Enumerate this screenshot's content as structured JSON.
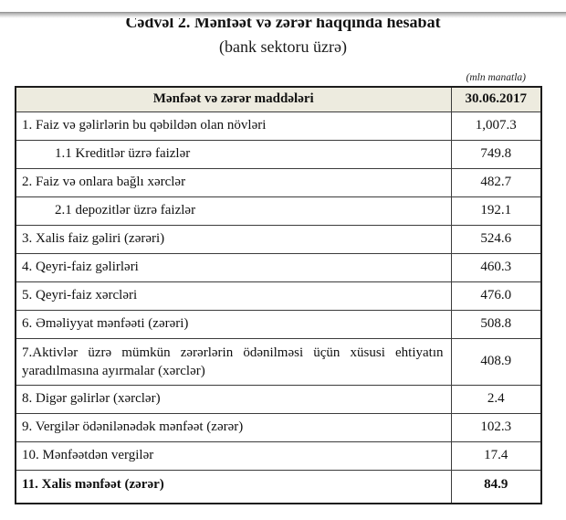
{
  "document": {
    "title": "Cədvəl 2. Mənfəət və zərər haqqında hesabat",
    "subtitle": "(bank sektoru üzrə)",
    "unit_note": "(mln manatla)"
  },
  "table": {
    "columns": [
      "Mənfəət və zərər maddələri",
      "30.06.2017"
    ],
    "rows": [
      {
        "label": "1. Faiz və gəlirlərin bu qəbildən olan növləri",
        "value": "1,007.3",
        "indent": false,
        "bold": false,
        "justify": false
      },
      {
        "label": "1.1 Kreditlər üzrə faizlər",
        "value": "749.8",
        "indent": true,
        "bold": false,
        "justify": false
      },
      {
        "label": "2. Faiz və onlara bağlı xərclər",
        "value": "482.7",
        "indent": false,
        "bold": false,
        "justify": false
      },
      {
        "label": "2.1 depozitlər üzrə faizlər",
        "value": "192.1",
        "indent": true,
        "bold": false,
        "justify": false
      },
      {
        "label": "3. Xalis faiz gəliri (zərəri)",
        "value": "524.6",
        "indent": false,
        "bold": false,
        "justify": false
      },
      {
        "label": "4. Qeyri-faiz gəlirləri",
        "value": "460.3",
        "indent": false,
        "bold": false,
        "justify": false
      },
      {
        "label": "5. Qeyri-faiz xərcləri",
        "value": "476.0",
        "indent": false,
        "bold": false,
        "justify": false
      },
      {
        "label": "6. Əməliyyat mənfəəti (zərəri)",
        "value": "508.8",
        "indent": false,
        "bold": false,
        "justify": false
      },
      {
        "label": "7.Aktivlər üzrə mümkün zərərlərin ödənilməsi üçün xüsusi ehtiyatın yaradılmasına ayırmalar (xərclər)",
        "value": "408.9",
        "indent": false,
        "bold": false,
        "justify": true
      },
      {
        "label": "8. Digər gəlirlər (xərclər)",
        "value": "2.4",
        "indent": false,
        "bold": false,
        "justify": false
      },
      {
        "label": "9. Vergilər ödənilənədək mənfəət (zərər)",
        "value": "102.3",
        "indent": false,
        "bold": false,
        "justify": false
      },
      {
        "label": "10. Mənfəətdən vergilər",
        "value": "17.4",
        "indent": false,
        "bold": false,
        "justify": false
      },
      {
        "label": "11. Xalis mənfəət (zərər)",
        "value": "84.9",
        "indent": false,
        "bold": true,
        "justify": false
      }
    ]
  },
  "colors": {
    "header_bg": "#edebdf",
    "border": "#1c1c1c",
    "text": "#111111"
  }
}
